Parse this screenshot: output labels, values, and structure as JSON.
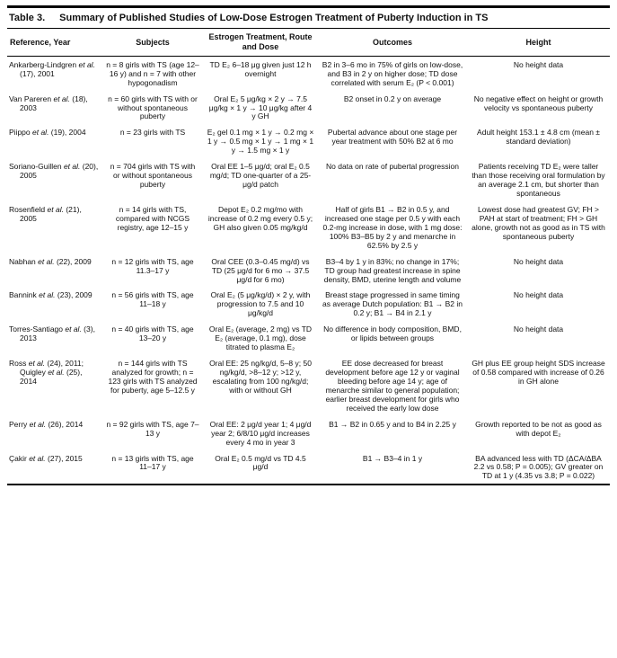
{
  "table": {
    "title_label": "Table 3.",
    "title": "Summary of Published Studies of Low-Dose Estrogen Treatment of Puberty Induction in TS",
    "columns": [
      "Reference, Year",
      "Subjects",
      "Estrogen Treatment, Route and Dose",
      "Outcomes",
      "Height"
    ],
    "rows": [
      [
        "Ankarberg-Lindgren et al. (17), 2001",
        "n = 8 girls with TS (age 12–16 y) and n = 7 with other hypogonadism",
        "TD E₂ 6–18 μg given just 12 h overnight",
        "B2 in 3–6 mo in 75% of girls on low-dose, and B3 in 2 y on higher dose; TD dose correlated with serum E₂ (P < 0.001)",
        "No height data"
      ],
      [
        "Van Pareren et al. (18), 2003",
        "n = 60 girls with TS with or without spontaneous puberty",
        "Oral E₂ 5 μg/kg × 2 y → 7.5 μg/kg × 1 y → 10 μg/kg after 4 y GH",
        "B2 onset in 0.2 y on average",
        "No negative effect on height or growth velocity vs spontaneous puberty"
      ],
      [
        "Piippo et al. (19), 2004",
        "n = 23 girls with TS",
        "E₂ gel 0.1 mg × 1 y → 0.2 mg × 1 y → 0.5 mg × 1 y → 1 mg × 1 y → 1.5 mg × 1 y",
        "Pubertal advance about one stage per year treatment with 50% B2 at 6 mo",
        "Adult height 153.1 ± 4.8 cm (mean ± standard deviation)"
      ],
      [
        "Soriano-Guillen et al. (20), 2005",
        "n = 704 girls with TS with or without spontaneous puberty",
        "Oral EE 1–5 μg/d; oral E₂ 0.5 mg/d; TD one-quarter of a 25-μg/d patch",
        "No data on rate of pubertal progression",
        "Patients receiving TD E₂ were taller than those receiving oral formulation by an average 2.1 cm, but shorter than spontaneous"
      ],
      [
        "Rosenfield et al. (21), 2005",
        "n = 14 girls with TS, compared with NCGS registry, age 12–15 y",
        "Depot E₂ 0.2 mg/mo with increase of 0.2 mg every 0.5 y; GH also given 0.05 mg/kg/d",
        "Half of girls B1 → B2 in 0.5 y, and increased one stage per 0.5 y with each 0.2-mg increase in dose, with 1 mg dose: 100% B3–B5 by 2 y and menarche in 62.5% by 2.5 y",
        "Lowest dose had greatest GV; FH > PAH at start of treatment; FH > GH alone, growth not as good as in TS with spontaneous puberty"
      ],
      [
        "Nabhan et al. (22), 2009",
        "n = 12 girls with TS, age 11.3–17 y",
        "Oral CEE (0.3–0.45 mg/d) vs TD (25 μg/d for 6 mo → 37.5 μg/d for 6 mo)",
        "B3–4 by 1 y in 83%; no change in 17%; TD group had greatest increase in spine density, BMD, uterine length and volume",
        "No height data"
      ],
      [
        "Bannink et al. (23), 2009",
        "n = 56 girls with TS, age 11–18 y",
        "Oral E₂ (5 μg/kg/d) × 2 y, with progression to 7.5 and 10 μg/kg/d",
        "Breast stage progressed in same timing as average Dutch population: B1 → B2 in 0.2 y; B1 → B4 in 2.1 y",
        "No height data"
      ],
      [
        "Torres-Santiago et al. (3), 2013",
        "n = 40 girls with TS, age 13–20 y",
        "Oral E₂ (average, 2 mg) vs TD E₂ (average, 0.1 mg), dose titrated to plasma E₂",
        "No difference in body composition, BMD, or lipids between groups",
        "No height data"
      ],
      [
        "Ross et al. (24), 2011; Quigley et al. (25), 2014",
        "n = 144 girls with TS analyzed for growth; n = 123 girls with TS analyzed for puberty, age 5–12.5 y",
        "Oral EE: 25 ng/kg/d, 5–8 y; 50 ng/kg/d, >8–12 y; >12 y, escalating from 100 ng/kg/d; with or without GH",
        "EE dose decreased for breast development before age 12 y or vaginal bleeding before age 14 y; age of menarche similar to general population; earlier breast development for girls who received the early low dose",
        "GH plus EE group height SDS increase of 0.58 compared with increase of 0.26 in GH alone"
      ],
      [
        "Perry et al. (26), 2014",
        "n = 92 girls with TS, age 7–13 y",
        "Oral EE: 2 μg/d year 1; 4 μg/d year 2; 6/8/10 μg/d increases every 4 mo in year 3",
        "B1 → B2 in 0.65 y and to B4 in 2.25 y",
        "Growth reported to be not as good as with depot E₂"
      ],
      [
        "Çakir et al. (27), 2015",
        "n = 13 girls with TS, age 11–17 y",
        "Oral E₂ 0.5 mg/d vs TD 4.5 μg/d",
        "B1 → B3–4 in 1 y",
        "BA advanced less with TD (ΔCA/ΔBA 2.2 vs 0.58; P = 0.005); GV greater on TD at 1 y (4.35 vs 3.8; P = 0.022)"
      ]
    ]
  }
}
